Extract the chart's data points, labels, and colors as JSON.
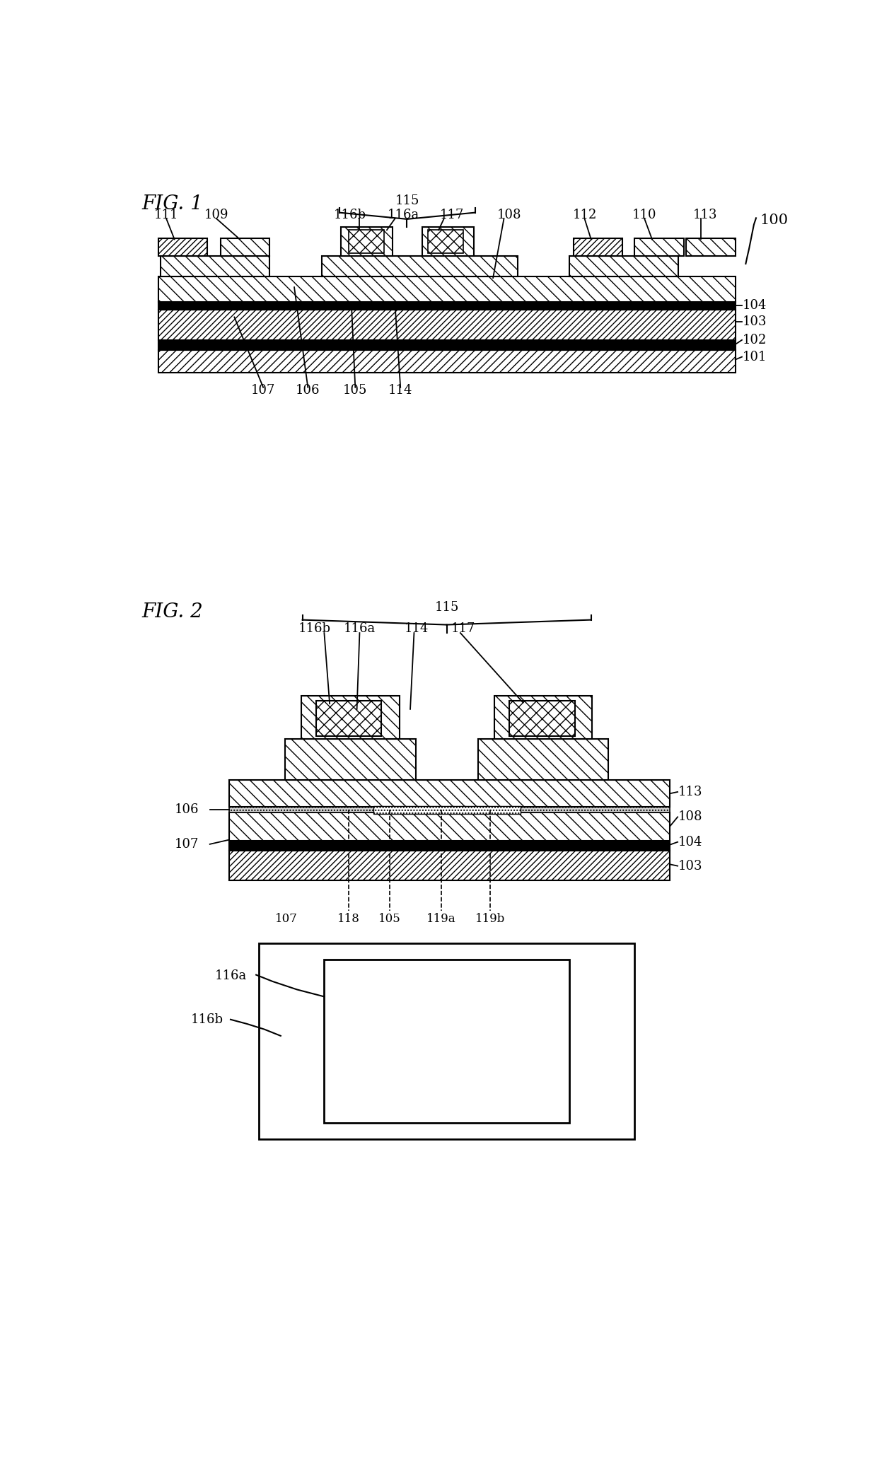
{
  "background_color": "#ffffff",
  "line_color": "#000000",
  "fig1_title": "FIG. 1",
  "fig2_title": "FIG. 2",
  "ref_100": "100"
}
